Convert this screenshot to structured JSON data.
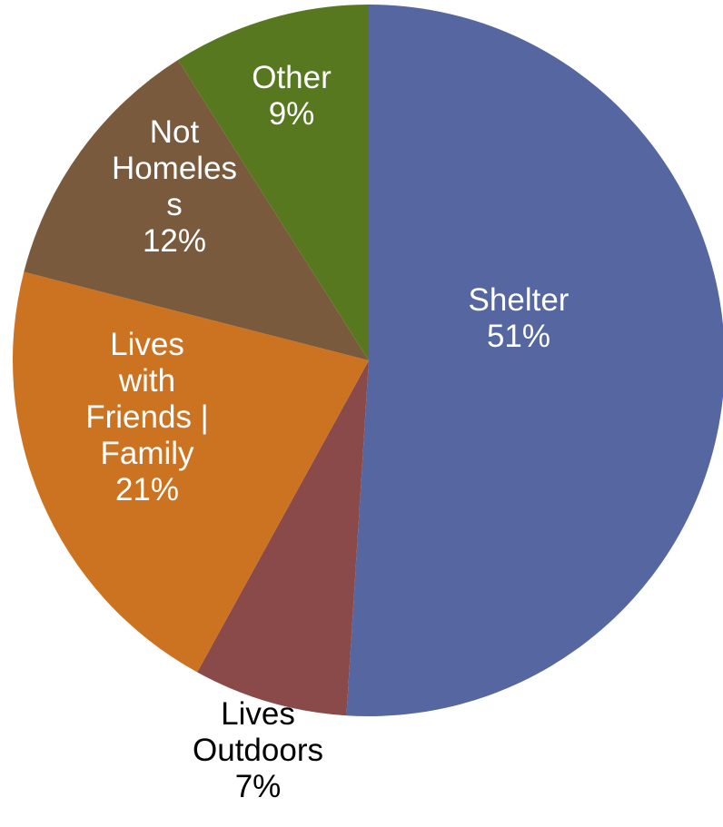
{
  "chart_data": {
    "type": "pie",
    "title": "",
    "slices": [
      {
        "label_lines": [
          "Shelter"
        ],
        "value": 51,
        "percent_label": "51%",
        "color": "#5566a0",
        "text_color": "#ffffff",
        "label_outside": false
      },
      {
        "label_lines": [
          "Lives",
          "Outdoors"
        ],
        "value": 7,
        "percent_label": "7%",
        "color": "#8b4a4a",
        "text_color": "#000000",
        "label_outside": true
      },
      {
        "label_lines": [
          "Lives",
          "with",
          "Friends |",
          "Family"
        ],
        "value": 21,
        "percent_label": "21%",
        "color": "#cc7322",
        "text_color": "#ffffff",
        "label_outside": false
      },
      {
        "label_lines": [
          "Not",
          "Homeles",
          "s"
        ],
        "value": 12,
        "percent_label": "12%",
        "color": "#7a5a3d",
        "text_color": "#ffffff",
        "label_outside": false
      },
      {
        "label_lines": [
          "Other"
        ],
        "value": 9,
        "percent_label": "9%",
        "color": "#58781f",
        "text_color": "#ffffff",
        "label_outside": false
      }
    ],
    "legend": "none"
  }
}
